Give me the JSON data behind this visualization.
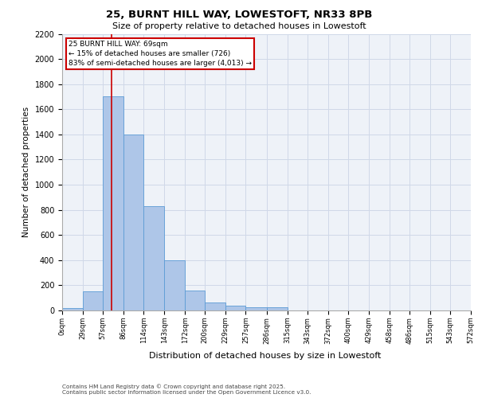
{
  "title_line1": "25, BURNT HILL WAY, LOWESTOFT, NR33 8PB",
  "title_line2": "Size of property relative to detached houses in Lowestoft",
  "xlabel": "Distribution of detached houses by size in Lowestoft",
  "ylabel": "Number of detached properties",
  "footer_line1": "Contains HM Land Registry data © Crown copyright and database right 2025.",
  "footer_line2": "Contains public sector information licensed under the Open Government Licence v3.0.",
  "bar_edges": [
    0,
    29,
    57,
    86,
    114,
    143,
    172,
    200,
    229,
    257,
    286,
    315,
    343,
    372,
    400,
    429,
    458,
    486,
    515,
    543,
    572
  ],
  "bar_heights": [
    20,
    150,
    1700,
    1400,
    830,
    400,
    160,
    65,
    35,
    28,
    28,
    0,
    0,
    0,
    0,
    0,
    0,
    0,
    0,
    0
  ],
  "bar_color": "#aec6e8",
  "bar_edge_color": "#5b9bd5",
  "grid_color": "#d0d8e8",
  "bg_color": "#eef2f8",
  "property_size": 69,
  "vline_color": "#cc0000",
  "annotation_text": "25 BURNT HILL WAY: 69sqm\n← 15% of detached houses are smaller (726)\n83% of semi-detached houses are larger (4,013) →",
  "annotation_box_color": "#cc0000",
  "ylim": [
    0,
    2200
  ],
  "yticks": [
    0,
    200,
    400,
    600,
    800,
    1000,
    1200,
    1400,
    1600,
    1800,
    2000,
    2200
  ],
  "tick_labels": [
    "0sqm",
    "29sqm",
    "57sqm",
    "86sqm",
    "114sqm",
    "143sqm",
    "172sqm",
    "200sqm",
    "229sqm",
    "257sqm",
    "286sqm",
    "315sqm",
    "343sqm",
    "372sqm",
    "400sqm",
    "429sqm",
    "458sqm",
    "486sqm",
    "515sqm",
    "543sqm",
    "572sqm"
  ]
}
